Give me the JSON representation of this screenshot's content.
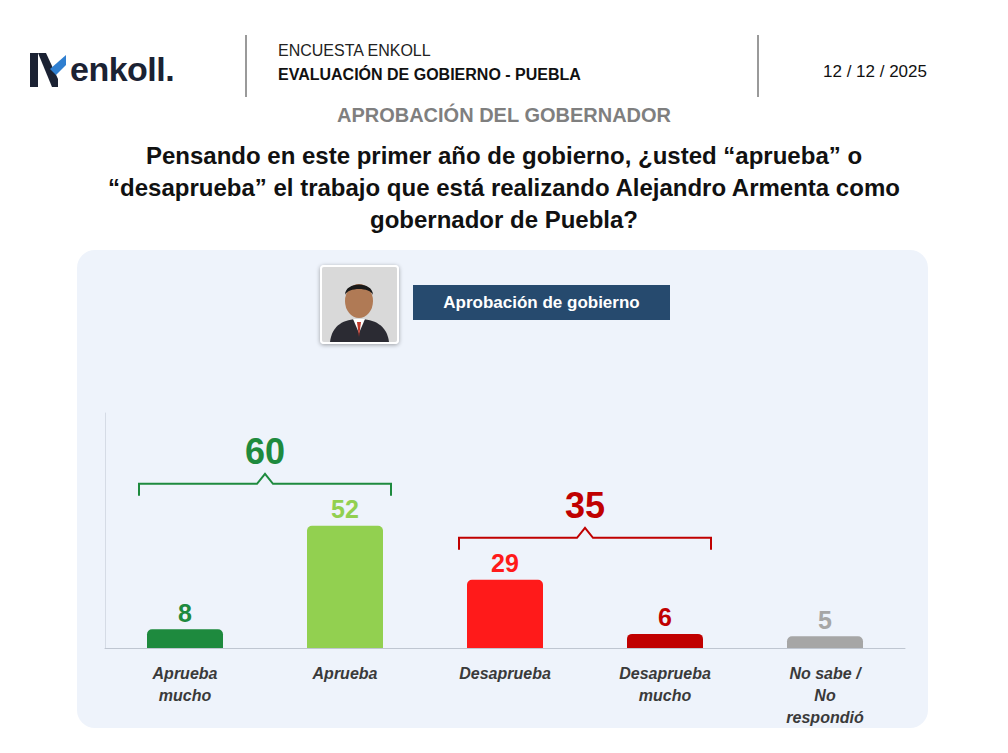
{
  "header": {
    "logo": "enkoll.",
    "survey": "ENCUESTA ENKOLL",
    "report": "EVALUACIÓN DE GOBIERNO - PUEBLA",
    "date": "12 / 12 / 2025",
    "section": "APROBACIÓN DEL GOBERNADOR",
    "question": "Pensando en este primer año de gobierno, ¿usted “aprueba” o “desaprueba” el trabajo que está realizando Alejandro Armenta como gobernador de Puebla?"
  },
  "chart_data": {
    "type": "bar",
    "title": "Aprobación de gobierno",
    "categories": [
      "Aprueba mucho",
      "Aprueba",
      "Desaprueba",
      "Desaprueba mucho",
      "No sabe / No respondió"
    ],
    "values": [
      8,
      52,
      29,
      6,
      5
    ],
    "colors": [
      "#1e8a3e",
      "#92d050",
      "#ff1a1a",
      "#c00000",
      "#a6a6a6"
    ],
    "ylim": [
      0,
      100
    ],
    "data_labels": true,
    "tick_labels": "x",
    "grid": false,
    "annotations": [
      {
        "value": 60,
        "from": "Aprueba mucho",
        "to": "Aprueba",
        "color": "#1e8a3e"
      },
      {
        "value": 35,
        "from": "Desaprueba",
        "to": "Desaprueba mucho",
        "color": "#c00000"
      }
    ]
  }
}
